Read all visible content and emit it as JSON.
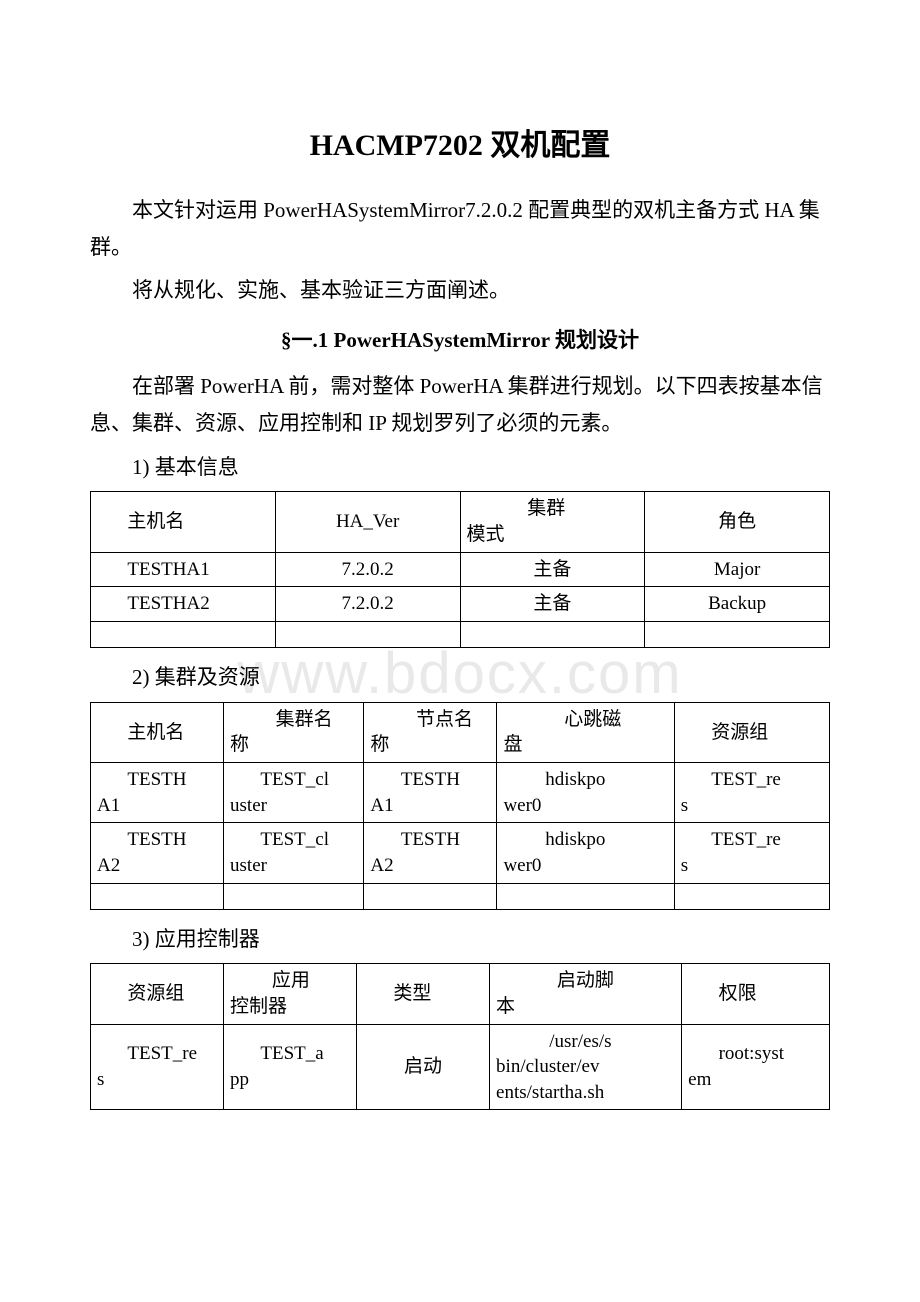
{
  "title": "HACMP7202 双机配置",
  "intro": [
    "本文针对运用 PowerHASystemMirror7.2.0.2 配置典型的双机主备方式 HA 集群。",
    "将从规化、实施、基本验证三方面阐述。"
  ],
  "section_heading": "§一.1 PowerHASystemMirror 规划设计",
  "section_intro": "在部署 PowerHA 前，需对整体 PowerHA 集群进行规划。以下四表按基本信息、集群、资源、应用控制和 IP 规划罗列了必须的元素。",
  "tables": {
    "t1": {
      "caption": "1) 基本信息",
      "columns": [
        "主机名",
        "HA_Ver",
        "集群模式",
        "角色"
      ],
      "col3_line1": "集群",
      "col3_line2": "模式",
      "rows": [
        [
          "TESTHA1",
          "7.2.0.2",
          "主备",
          "Major"
        ],
        [
          "TESTHA2",
          "7.2.0.2",
          "主备",
          "Backup"
        ]
      ]
    },
    "t2": {
      "caption": "2) 集群及资源",
      "columns": [
        "主机名",
        "集群名称",
        "节点名称",
        "心跳磁盘",
        "资源组"
      ],
      "h2_l1": "集群名",
      "h2_l2": "称",
      "h3_l1": "节点名",
      "h3_l2": "称",
      "h4_l1": "心跳磁",
      "h4_l2": "盘",
      "rows": [
        {
          "c1l1": "TESTH",
          "c1l2": "A1",
          "c2l1": "TEST_cl",
          "c2l2": "uster",
          "c3l1": "TESTH",
          "c3l2": "A1",
          "c4l1": "hdiskpo",
          "c4l2": "wer0",
          "c5l1": "TEST_re",
          "c5l2": "s"
        },
        {
          "c1l1": "TESTH",
          "c1l2": "A2",
          "c2l1": "TEST_cl",
          "c2l2": "uster",
          "c3l1": "TESTH",
          "c3l2": "A2",
          "c4l1": "hdiskpo",
          "c4l2": "wer0",
          "c5l1": "TEST_re",
          "c5l2": "s"
        }
      ]
    },
    "t3": {
      "caption": "3) 应用控制器",
      "columns": [
        "资源组",
        "应用控制器",
        "类型",
        "启动脚本",
        "权限"
      ],
      "h2_l1": "应用",
      "h2_l2": "控制器",
      "h4_l1": "启动脚",
      "h4_l2": "本",
      "rows": [
        {
          "c1l1": "TEST_re",
          "c1l2": "s",
          "c2l1": "TEST_a",
          "c2l2": "pp",
          "c3": "启动",
          "c4l1": "/usr/es/s",
          "c4l2": "bin/cluster/ev",
          "c4l3": "ents/startha.sh",
          "c5l1": "root:syst",
          "c5l2": "em"
        }
      ]
    }
  },
  "watermark": "www.bdocx.com",
  "style": {
    "page_bg": "#ffffff",
    "text_color": "#000000",
    "border_color": "#000000",
    "watermark_color": "#e9e9e9",
    "title_fontsize": 30,
    "body_fontsize": 21,
    "table_fontsize": 19
  }
}
